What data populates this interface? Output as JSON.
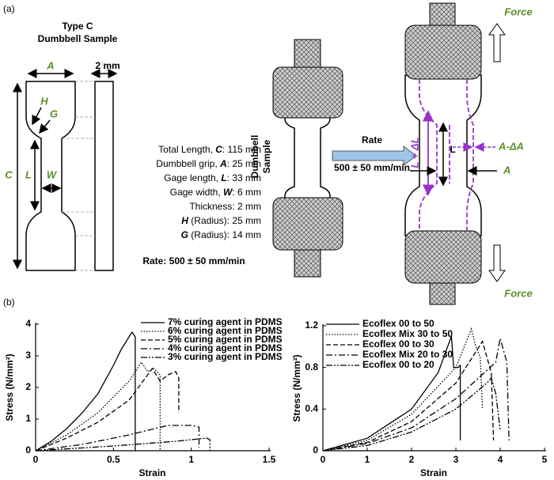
{
  "panel_a_label": "(a)",
  "panel_b_label": "(b)",
  "diagram": {
    "sample_title": [
      "Type C",
      "Dumbbell Sample"
    ],
    "dim_A": "A",
    "dim_thickness": "2 mm",
    "dim_H": "H",
    "dim_G": "G",
    "dim_C": "C",
    "dim_L": "L",
    "dim_W": "W",
    "specs": [
      [
        "Total Length, ",
        "C",
        ": 115 mm"
      ],
      [
        "Dumbbell grip, ",
        "A",
        ": 25 mm"
      ],
      [
        "Gage length, ",
        "L",
        ": 33 mm"
      ],
      [
        "Gage width, ",
        "W",
        ": 6 mm"
      ],
      [
        "Thickness: 2 mm"
      ],
      [
        "H",
        " (Radius): 25 mm"
      ],
      [
        "G",
        " (Radius): 14 mm"
      ]
    ],
    "rate_note": "Rate: 500 ± 50 mm/min",
    "side_label": [
      "Dumbbell",
      "Sample"
    ],
    "rate_arrow_label": "Rate",
    "rate_arrow_value": "500 ± 50 mm/min",
    "force_top": "Force",
    "force_bottom": "Force",
    "stretched_length": "L + ΔL",
    "original_length": "L",
    "reduced_width": "A-ΔA",
    "original_width": "A"
  },
  "chart_data": [
    {
      "type": "line",
      "xlabel": "Strain",
      "ylabel": "Stress (N/mm²)",
      "xlim": [
        0,
        1.5
      ],
      "xticks": [
        0,
        0.5,
        1,
        1.5
      ],
      "ylim": [
        0,
        4
      ],
      "yticks": [
        0,
        1,
        2,
        3,
        4
      ],
      "legend": "upper right",
      "series": [
        {
          "name": "7% curing agent in PDMS",
          "color": "#000000",
          "dash": "solid",
          "x": [
            0,
            0.1,
            0.2,
            0.3,
            0.4,
            0.5,
            0.55,
            0.6,
            0.62,
            0.64,
            0.64
          ],
          "values": [
            0,
            0.3,
            0.7,
            1.2,
            1.8,
            2.7,
            3.2,
            3.6,
            3.75,
            3.6,
            0
          ]
        },
        {
          "name": "6% curing agent in PDMS",
          "color": "#000000",
          "dash": "dotted",
          "x": [
            0,
            0.2,
            0.4,
            0.6,
            0.68,
            0.72,
            0.76,
            0.8,
            0.8
          ],
          "values": [
            0,
            0.5,
            1.2,
            2.2,
            2.8,
            2.5,
            2.6,
            2.4,
            0
          ]
        },
        {
          "name": "5% curing agent in PDMS",
          "color": "#000000",
          "dash": "dashed",
          "x": [
            0,
            0.2,
            0.4,
            0.6,
            0.75,
            0.8,
            0.85,
            0.9,
            0.92,
            0.92
          ],
          "values": [
            0,
            0.4,
            0.9,
            1.6,
            2.6,
            2.2,
            2.4,
            2.5,
            2.3,
            1.2
          ]
        },
        {
          "name": "4% curing agent in PDMS",
          "color": "#000000",
          "dash": "dashdot",
          "x": [
            0,
            0.3,
            0.6,
            0.85,
            1,
            1.05,
            1.05
          ],
          "values": [
            0,
            0.2,
            0.5,
            0.8,
            0.8,
            0.75,
            0.1
          ]
        },
        {
          "name": "3% curing agent in PDMS",
          "color": "#000000",
          "dash": "dashdotdot",
          "x": [
            0,
            0.5,
            0.9,
            1.1,
            1.12,
            1.12
          ],
          "values": [
            0,
            0.15,
            0.3,
            0.4,
            0.35,
            0
          ]
        }
      ]
    },
    {
      "type": "line",
      "xlabel": "Strain",
      "ylabel": "Stress (N/mm²)",
      "xlim": [
        0,
        5
      ],
      "xticks": [
        0,
        1,
        2,
        3,
        4,
        5
      ],
      "ylim": [
        0,
        1.2
      ],
      "yticks": [
        0,
        0.4,
        0.8,
        1.2
      ],
      "legend": "upper left",
      "series": [
        {
          "name": "Ecoflex 00 to 50",
          "color": "#000000",
          "dash": "solid",
          "x": [
            0,
            1,
            2,
            2.6,
            2.9,
            2.95,
            3.05,
            3.1,
            3.1
          ],
          "values": [
            0,
            0.12,
            0.4,
            0.75,
            1.1,
            0.8,
            0.8,
            0.82,
            0.1
          ]
        },
        {
          "name": "Ecoflex Mix 30 to 50",
          "color": "#000000",
          "dash": "dotted",
          "x": [
            0,
            1,
            2,
            3,
            3.35,
            3.45,
            3.55,
            3.6
          ],
          "values": [
            0,
            0.1,
            0.35,
            0.8,
            1.17,
            1,
            0.9,
            0.4
          ]
        },
        {
          "name": "Ecoflex 00 to 30",
          "color": "#000000",
          "dash": "dashed",
          "x": [
            0,
            1,
            2,
            3,
            3.6,
            3.7,
            3.8,
            3.85
          ],
          "values": [
            0,
            0.08,
            0.28,
            0.65,
            1.05,
            0.9,
            0.75,
            0.1
          ]
        },
        {
          "name": "Ecoflex Mix 20 to 30",
          "color": "#000000",
          "dash": "dashdot",
          "x": [
            0,
            1,
            2,
            3,
            3.9,
            4,
            4.15,
            4.2
          ],
          "values": [
            0,
            0.07,
            0.22,
            0.5,
            0.85,
            1.08,
            0.85,
            0.1
          ]
        },
        {
          "name": "Ecoflex 00 to 20",
          "color": "#000000",
          "dash": "dashdotdot",
          "x": [
            0,
            1,
            2,
            3,
            3.7,
            3.8,
            3.9,
            4
          ],
          "values": [
            0,
            0.05,
            0.18,
            0.4,
            0.65,
            0.7,
            0.55,
            0.2
          ]
        }
      ]
    }
  ]
}
